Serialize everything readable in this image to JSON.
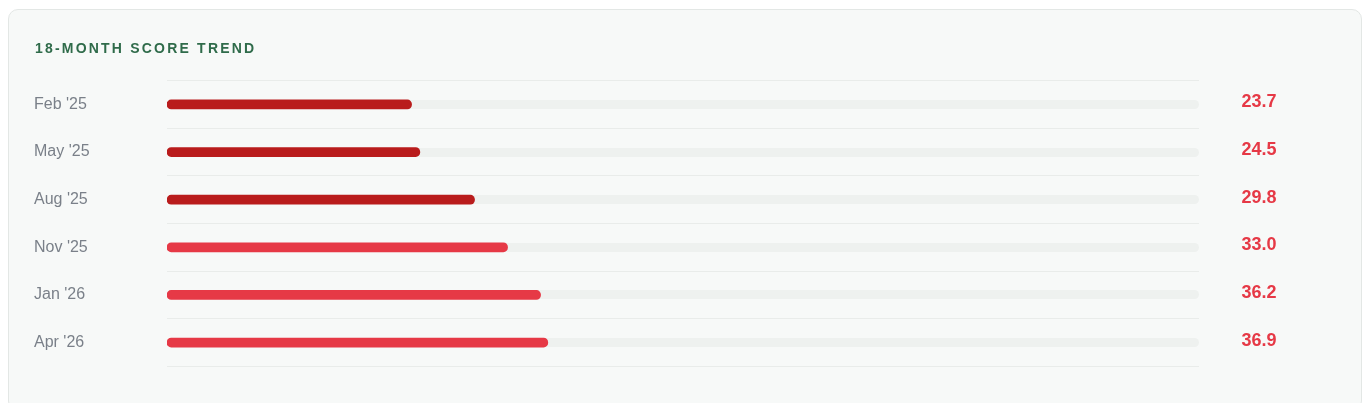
{
  "chart_data": {
    "type": "bar",
    "orientation": "horizontal",
    "title": "18-MONTH SCORE TREND",
    "categories": [
      "Feb '25",
      "May '25",
      "Aug '25",
      "Nov '25",
      "Jan '26",
      "Apr '26"
    ],
    "values": [
      23.7,
      24.5,
      29.8,
      33.0,
      36.2,
      36.9
    ],
    "colors": [
      "#b91c1c",
      "#b91c1c",
      "#b91c1c",
      "#e63946",
      "#e63946",
      "#e63946"
    ],
    "value_labels": [
      "23.7",
      "24.5",
      "29.8",
      "33.0",
      "36.2",
      "36.9"
    ],
    "xlim": [
      0,
      100
    ],
    "tick_labels": "y",
    "grid": "y",
    "legend": false
  }
}
